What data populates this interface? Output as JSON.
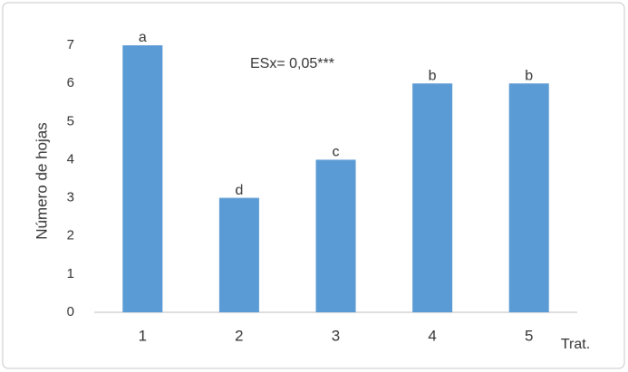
{
  "chart_data": {
    "type": "bar",
    "ylabel": "Número de hojas",
    "xlabel": "Trat.",
    "note": "ESx= 0,05***",
    "categories": [
      "1",
      "2",
      "3",
      "4",
      "5"
    ],
    "values": [
      7,
      3,
      4,
      6,
      6
    ],
    "annotations": [
      "a",
      "d",
      "c",
      "b",
      "b"
    ],
    "color": "#5b9bd5",
    "ylim": [
      0,
      7
    ],
    "yticks": [
      0,
      1,
      2,
      3,
      4,
      5,
      6,
      7
    ],
    "grid": false
  }
}
